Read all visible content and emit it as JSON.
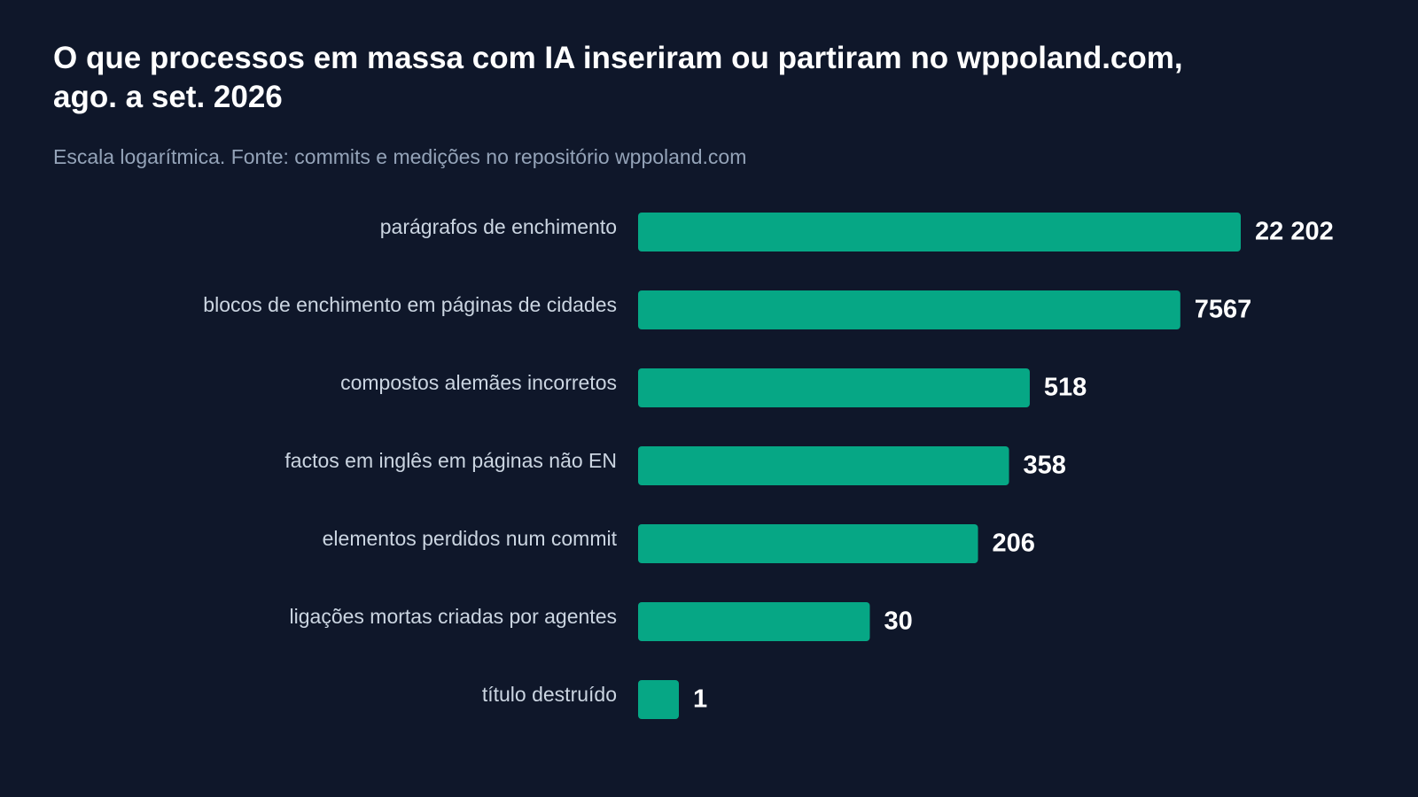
{
  "page": {
    "background": "#0f172a"
  },
  "chart_data": {
    "type": "bar",
    "orientation": "horizontal",
    "title_lines": [
      "O que processos em massa com IA inseriram ou partiram no wppoland.com,",
      "ago. a set. 2026"
    ],
    "subtitle": "Escala logarítmica. Fonte: commits e medições no repositório wppoland.com",
    "xscale": "log",
    "grid": false,
    "legend": "none",
    "bar_color": "#06a785",
    "label_color": "#cbd5e1",
    "value_color": "#ffffff",
    "categories": [
      "parágrafos de enchimento",
      "blocos de enchimento em páginas de cidades",
      "compostos alemães incorretos",
      "factos em inglês em páginas não EN",
      "elementos perdidos num commit",
      "ligações mortas criadas por agentes",
      "título destruído"
    ],
    "values": [
      22202,
      7567,
      518,
      358,
      206,
      30,
      1
    ],
    "value_labels": [
      "22 202",
      "7567",
      "518",
      "358",
      "206",
      "30",
      "1"
    ]
  }
}
